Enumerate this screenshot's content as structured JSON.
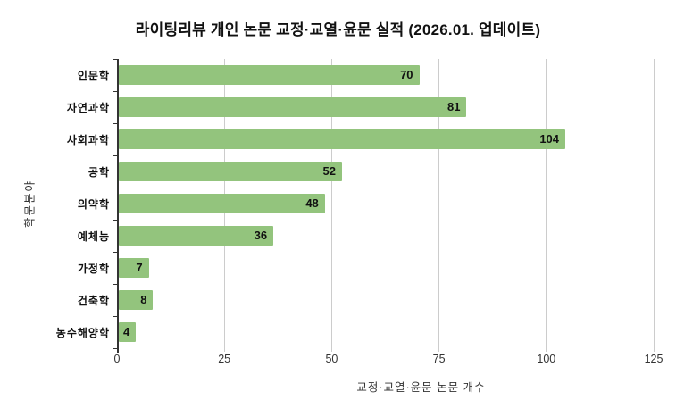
{
  "title": "라이팅리뷰 개인 논문 교정·교열·윤문 실적 (2026.01. 업데이트)",
  "chart_data": {
    "type": "bar",
    "orientation": "horizontal",
    "title": "라이팅리뷰 개인 논문 교정·교열·윤문 실적 (2026.01. 업데이트)",
    "categories": [
      "인문학",
      "자연과학",
      "사회과학",
      "공학",
      "의약학",
      "예체능",
      "가정학",
      "건축학",
      "농수해양학"
    ],
    "values": [
      70,
      81,
      104,
      52,
      48,
      36,
      7,
      8,
      4
    ],
    "value_labels": [
      "70",
      "81",
      "104",
      "52",
      "48",
      "36",
      "7",
      "8",
      "4"
    ],
    "xlabel": "교정·교열·윤문 논문 개수",
    "ylabel": "학문분야",
    "xlim": [
      0,
      125
    ],
    "xticks": [
      0,
      25,
      50,
      75,
      100,
      125
    ],
    "xtick_labels": [
      "0",
      "25",
      "50",
      "75",
      "100",
      "125"
    ],
    "grid": true,
    "legend": false,
    "bar_color": "#93c47d",
    "value_label_color": "#111111",
    "gridline_color": "#cccccc",
    "axis_color": "#333333",
    "background_color": "#ffffff"
  }
}
